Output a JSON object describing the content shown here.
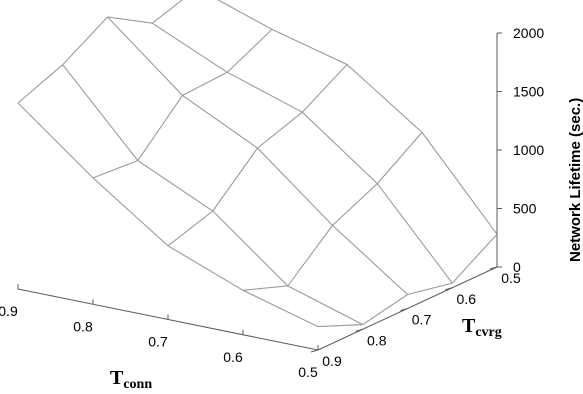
{
  "chart_data": {
    "type": "surface",
    "x_axis": {
      "name": "conn",
      "label": "T",
      "subscript": "conn",
      "values": [
        0.9,
        0.8,
        0.7,
        0.6,
        0.5
      ],
      "tick_labels": [
        "0.9",
        "0.8",
        "0.7",
        "0.6",
        "0.5"
      ]
    },
    "y_axis": {
      "name": "cvrg",
      "label": "T",
      "subscript": "cvrg",
      "values": [
        0.5,
        0.6,
        0.7,
        0.8,
        0.9
      ],
      "tick_labels": [
        "0.5",
        "0.6",
        "0.7",
        "0.8",
        "0.9"
      ]
    },
    "z_axis": {
      "label": "Network Lifetime (sec.)",
      "range": [
        0,
        2000
      ],
      "tick_labels": [
        "0",
        "500",
        "1000",
        "1500",
        "2000"
      ],
      "ticks": [
        0,
        500,
        1000,
        1500,
        2000
      ]
    },
    "z_values": [
      [
        1860,
        1640,
        1470,
        1020,
        280
      ],
      [
        1740,
        1450,
        1240,
        760,
        40
      ],
      [
        1970,
        1430,
        1110,
        580,
        120
      ],
      [
        1740,
        1050,
        750,
        240,
        40
      ],
      [
        1590,
        1080,
        630,
        380,
        200
      ]
    ],
    "grid": false
  }
}
